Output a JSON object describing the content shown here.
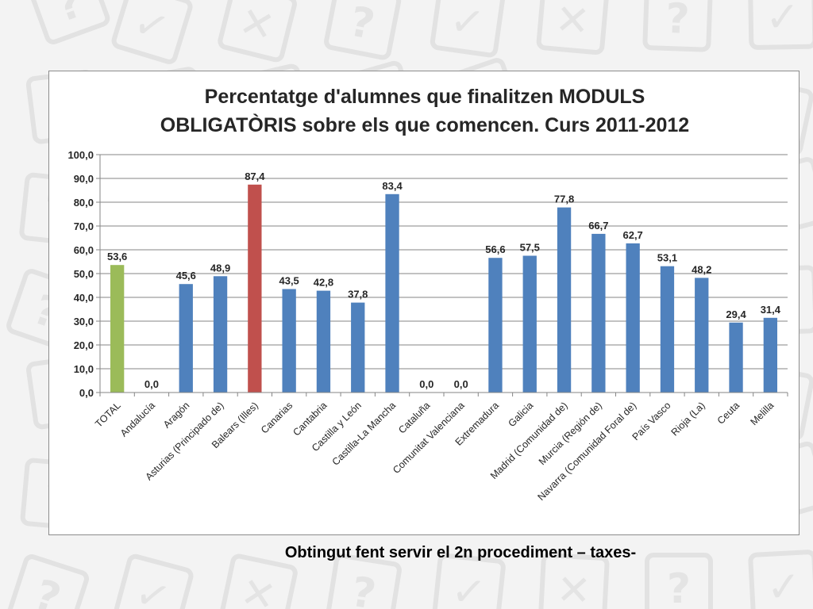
{
  "caption": "Obtingut fent servir el 2n procediment – taxes-",
  "chart_data": {
    "type": "bar",
    "title_lines": [
      "Percentatge d'alumnes que finalitzen MODULS",
      "OBLIGATÒRIS sobre els que comencen. Curs 2011-2012"
    ],
    "categories": [
      "TOTAL",
      "Andalucía",
      "Aragón",
      "Asturias (Principado de)",
      "Balears (Illes)",
      "Canarias",
      "Cantabria",
      "Castilla y León",
      "Castilla-La Mancha",
      "Cataluña",
      "Comunitat Valenciana",
      "Extremadura",
      "Galicia",
      "Madrid (Comunidad de)",
      "Murcia (Región de)",
      "Navarra (Comunidad Foral de)",
      "País Vasco",
      "Rioja (La)",
      "Ceuta",
      "Melilla"
    ],
    "values": [
      53.6,
      0.0,
      45.6,
      48.9,
      87.4,
      43.5,
      42.8,
      37.8,
      83.4,
      0.0,
      0.0,
      56.6,
      57.5,
      77.8,
      66.7,
      62.7,
      53.1,
      48.2,
      29.4,
      31.4
    ],
    "value_labels": [
      "53,6",
      "0,0",
      "45,6",
      "48,9",
      "87,4",
      "43,5",
      "42,8",
      "37,8",
      "83,4",
      "0,0",
      "0,0",
      "56,6",
      "57,5",
      "77,8",
      "66,7",
      "62,7",
      "53,1",
      "48,2",
      "29,4",
      "31,4"
    ],
    "bar_colors": [
      "#9bbb59",
      "#4f81bd",
      "#4f81bd",
      "#4f81bd",
      "#c0504d",
      "#4f81bd",
      "#4f81bd",
      "#4f81bd",
      "#4f81bd",
      "#4f81bd",
      "#4f81bd",
      "#4f81bd",
      "#4f81bd",
      "#4f81bd",
      "#4f81bd",
      "#4f81bd",
      "#4f81bd",
      "#4f81bd",
      "#4f81bd",
      "#4f81bd"
    ],
    "yticks": [
      0,
      10,
      20,
      30,
      40,
      50,
      60,
      70,
      80,
      90,
      100
    ],
    "ytick_labels": [
      "0,0",
      "10,0",
      "20,0",
      "30,0",
      "40,0",
      "50,0",
      "60,0",
      "70,0",
      "80,0",
      "90,0",
      "100,0"
    ],
    "ylim": [
      0,
      100
    ],
    "grid": true,
    "legend": "none"
  }
}
